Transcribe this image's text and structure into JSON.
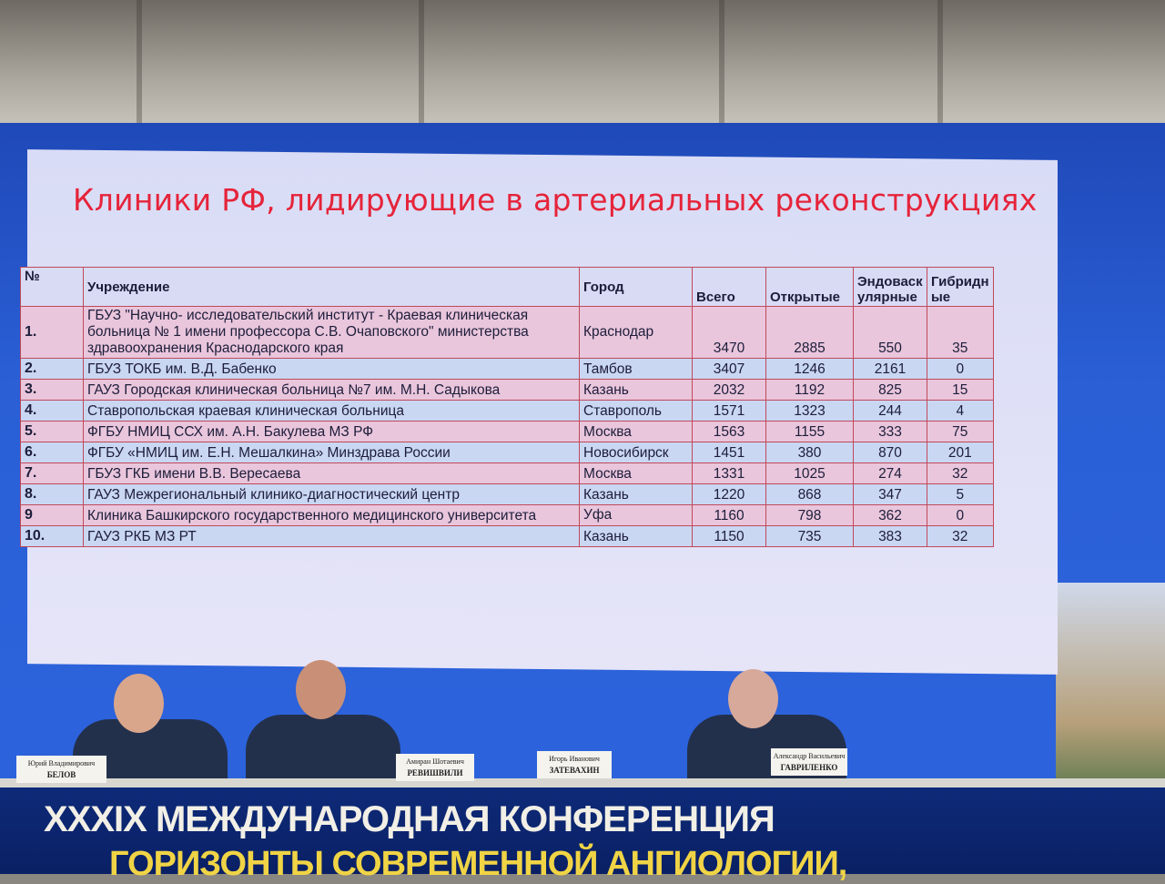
{
  "slide": {
    "title": "Клиники РФ, лидирующие в артериальных реконструкциях",
    "columns": [
      "№",
      "Учреждение",
      "Город",
      "Всего",
      "Открытые",
      "Эндоваск улярные",
      "Гибридн ые"
    ],
    "rows": [
      {
        "n": "1.",
        "name": "ГБУЗ \"Научно- исследовательский институт - Краевая клиническая больница № 1 имени профессора С.В. Очаповского\" министерства здравоохранения Краснодарского края",
        "city": "Краснодар",
        "total": "3470",
        "open": "2885",
        "endo": "550",
        "hybrid": "35"
      },
      {
        "n": "2.",
        "name": "ГБУЗ ТОКБ им. В.Д. Бабенко",
        "city": "Тамбов",
        "total": "3407",
        "open": "1246",
        "endo": "2161",
        "hybrid": "0"
      },
      {
        "n": "3.",
        "name": "ГАУЗ Городская клиническая больница №7 им. М.Н. Садыкова",
        "city": "Казань",
        "total": "2032",
        "open": "1192",
        "endo": "825",
        "hybrid": "15"
      },
      {
        "n": "4.",
        "name": "Ставропольская краевая клиническая больница",
        "city": "Ставрополь",
        "total": "1571",
        "open": "1323",
        "endo": "244",
        "hybrid": "4"
      },
      {
        "n": "5.",
        "name": "ФГБУ НМИЦ ССХ им. А.Н. Бакулева МЗ РФ",
        "city": "Москва",
        "total": "1563",
        "open": "1155",
        "endo": "333",
        "hybrid": "75"
      },
      {
        "n": "6.",
        "name": "ФГБУ «НМИЦ им. Е.Н. Мешалкина» Минздрава России",
        "city": "Новосибирск",
        "total": "1451",
        "open": "380",
        "endo": "870",
        "hybrid": "201"
      },
      {
        "n": "7.",
        "name": "ГБУЗ ГКБ имени В.В. Вересаева",
        "city": "Москва",
        "total": "1331",
        "open": "1025",
        "endo": "274",
        "hybrid": "32"
      },
      {
        "n": "8.",
        "name": "ГАУЗ Межрегиональный клинико-диагностический центр",
        "city": "Казань",
        "total": "1220",
        "open": "868",
        "endo": "347",
        "hybrid": "5"
      },
      {
        "n": "9",
        "name": "Клиника Башкирского государственного медицинского университета",
        "city": "Уфа",
        "total": "1160",
        "open": "798",
        "endo": "362",
        "hybrid": "0"
      },
      {
        "n": "10.",
        "name": "ГАУЗ РКБ МЗ РТ",
        "city": "Казань",
        "total": "1150",
        "open": "735",
        "endo": "383",
        "hybrid": "32"
      }
    ]
  },
  "name_cards": [
    {
      "first": "Юрий Владимирович",
      "last": "БЕЛОВ"
    },
    {
      "first": "Амиран Шотаевич",
      "last": "РЕВИШВИЛИ"
    },
    {
      "first": "Игорь Иванович",
      "last": "ЗАТЕВАХИН"
    },
    {
      "first": "Александр Васильевич",
      "last": "ГАВРИЛЕНКО"
    }
  ],
  "banner": {
    "line1": "XXXIX МЕЖДУНАРОДНАЯ КОНФЕРЕНЦИЯ",
    "line2": "ГОРИЗОНТЫ СОВРЕМЕННОЙ АНГИОЛОГИИ,"
  }
}
